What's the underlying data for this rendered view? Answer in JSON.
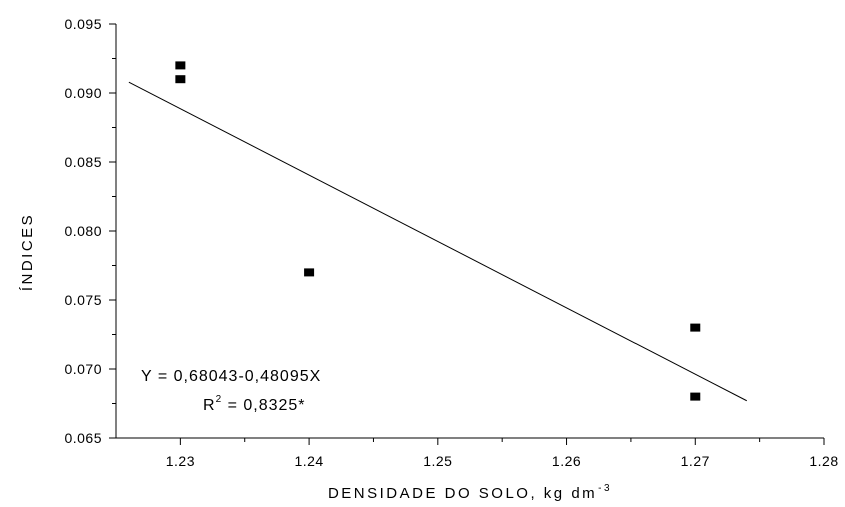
{
  "chart_data": {
    "type": "scatter",
    "xlabel": "DENSIDADE DO SOLO, kg dm",
    "xlabel_sup": "-3",
    "ylabel": "ÍNDICES",
    "xlim": [
      1.225,
      1.28
    ],
    "ylim": [
      0.065,
      0.095
    ],
    "x_ticks": [
      1.23,
      1.24,
      1.25,
      1.26,
      1.27,
      1.28
    ],
    "x_tick_labels": [
      "1.23",
      "1.24",
      "1.25",
      "1.26",
      "1.27",
      "1.28"
    ],
    "y_ticks": [
      0.065,
      0.07,
      0.075,
      0.08,
      0.085,
      0.09,
      0.095
    ],
    "y_tick_labels": [
      "0.065",
      "0.070",
      "0.075",
      "0.080",
      "0.085",
      "0.090",
      "0.095"
    ],
    "points": [
      {
        "x": 1.23,
        "y": 0.092
      },
      {
        "x": 1.23,
        "y": 0.091
      },
      {
        "x": 1.24,
        "y": 0.077
      },
      {
        "x": 1.27,
        "y": 0.073
      },
      {
        "x": 1.27,
        "y": 0.068
      }
    ],
    "trendline": {
      "x": [
        1.226,
        1.274
      ],
      "intercept": 0.68043,
      "slope": -0.48095
    },
    "equation": {
      "line1": "Y = 0,68043-0,48095X",
      "line2_prefix": "R",
      "line2_sup": "2",
      "line2_suffix": " = 0,8325*"
    },
    "grid": false,
    "legend": "none"
  }
}
